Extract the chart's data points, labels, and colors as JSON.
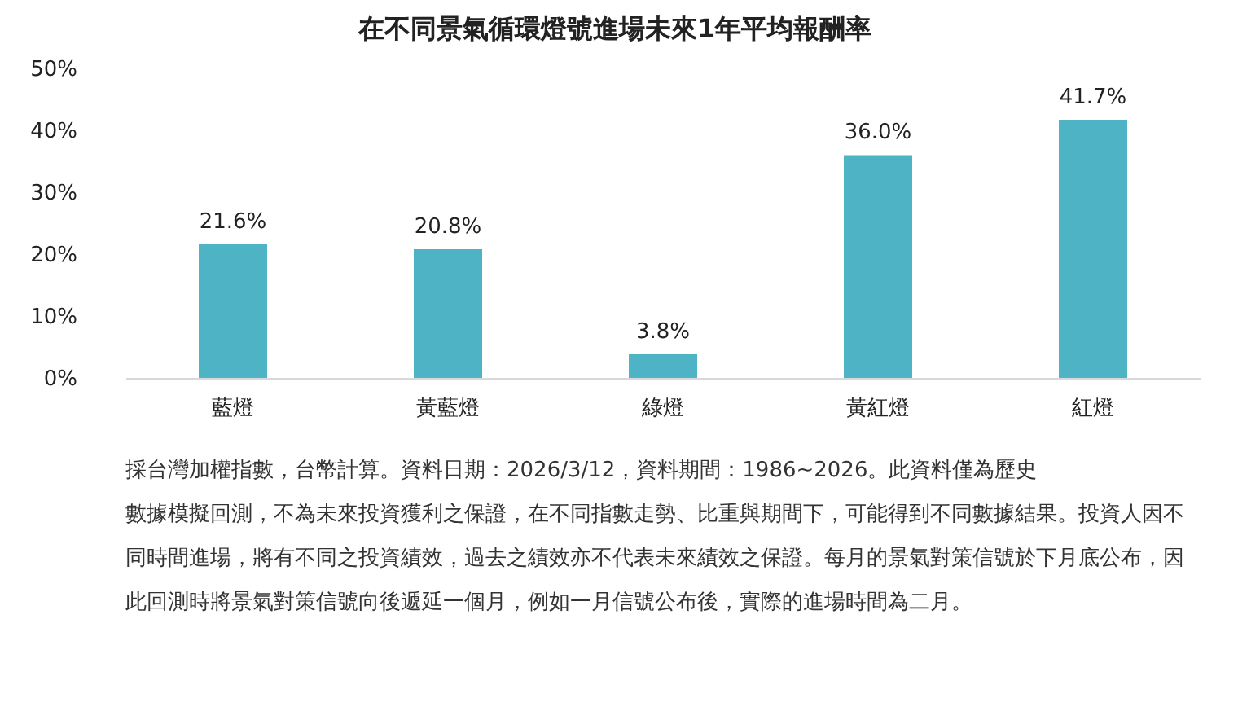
{
  "chart_data": {
    "type": "bar",
    "title": "在不同景氣循環燈號進場未來1年平均報酬率",
    "categories": [
      "藍燈",
      "黃藍燈",
      "綠燈",
      "黃紅燈",
      "紅燈"
    ],
    "values": [
      21.6,
      20.8,
      3.8,
      36.0,
      41.7
    ],
    "value_labels": [
      "21.6%",
      "20.8%",
      "3.8%",
      "36.0%",
      "41.7%"
    ],
    "color": "#4fb3c6",
    "ylim": [
      0,
      50
    ],
    "yticks": [
      {
        "value": 0,
        "label": "0%"
      },
      {
        "value": 10,
        "label": "10%"
      },
      {
        "value": 20,
        "label": "20%"
      },
      {
        "value": 30,
        "label": "30%"
      },
      {
        "value": 40,
        "label": "40%"
      },
      {
        "value": 50,
        "label": "50%"
      }
    ],
    "grid": false,
    "annotations": [
      "採台灣加權指數，台幣計算。資料日期：2026/3/12，資料期間：1986~2026。此資料僅為歷史數據模擬回測，不為未來投資獲利之保證，在不同指數走勢、比重與期間下，可能得到不同數據結果。投資人因不同時間進場，將有不同之投資績效，過去之績效亦不代表未來績效之保證。每月的景氣對策信號於下月底公布，因此回測時將景氣對策信號向後遞延一個月，例如一月信號公布後，實際的進場時間為二月。"
    ]
  }
}
